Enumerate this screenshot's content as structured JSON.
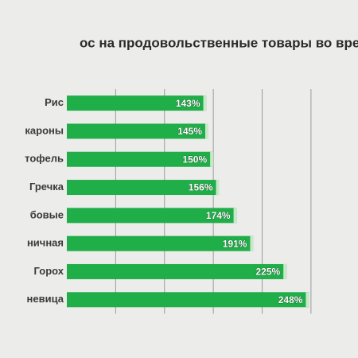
{
  "chart_data": {
    "type": "hbar",
    "title": "ос на продовольственные товары во вре",
    "categories": [
      "Рис",
      "кароны",
      "тофель",
      "Гречка",
      "бовые",
      "ничная",
      "Горох",
      "невица"
    ],
    "values": [
      143,
      145,
      150,
      156,
      174,
      191,
      225,
      248
    ],
    "value_labels": [
      "143%",
      "145%",
      "150%",
      "156%",
      "174%",
      "191%",
      "225%",
      "248%"
    ],
    "color": "#1fae48",
    "xlim": [
      0,
      290
    ],
    "xticks": [
      50,
      100,
      150,
      200,
      250
    ],
    "grid": true
  }
}
